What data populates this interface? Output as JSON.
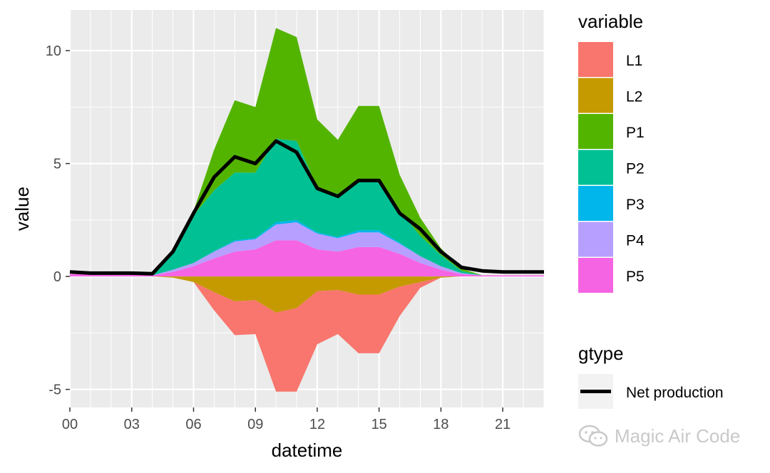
{
  "chart_data": {
    "type": "area",
    "xlabel": "datetime",
    "ylabel": "value",
    "x_hours": [
      0,
      1,
      2,
      3,
      4,
      5,
      6,
      7,
      8,
      9,
      10,
      11,
      12,
      13,
      14,
      15,
      16,
      17,
      18,
      19,
      20,
      21,
      22,
      23
    ],
    "x_tick_labels": [
      "00",
      "03",
      "06",
      "09",
      "12",
      "15",
      "18",
      "21"
    ],
    "x_tick_hours": [
      0,
      3,
      6,
      9,
      12,
      15,
      18,
      21
    ],
    "xlim": [
      0,
      23
    ],
    "ylim": [
      -5.8,
      11.8
    ],
    "y_ticks": [
      -5,
      0,
      5,
      10
    ],
    "y_tick_labels": [
      "-5",
      "0",
      "5",
      "10"
    ],
    "positive_series": [
      {
        "name": "P5",
        "color": "#F564E3",
        "values": [
          0.1,
          0.1,
          0.1,
          0.1,
          0.05,
          0.2,
          0.45,
          0.8,
          1.1,
          1.2,
          1.6,
          1.6,
          1.2,
          1.1,
          1.3,
          1.3,
          1.0,
          0.6,
          0.3,
          0.1,
          0.05,
          0.05,
          0.05,
          0.05
        ]
      },
      {
        "name": "P4",
        "color": "#B79FFF",
        "values": [
          0,
          0,
          0,
          0,
          0,
          0.1,
          0.15,
          0.3,
          0.45,
          0.45,
          0.7,
          0.8,
          0.7,
          0.6,
          0.65,
          0.65,
          0.45,
          0.3,
          0.15,
          0.05,
          0,
          0,
          0,
          0
        ]
      },
      {
        "name": "P3",
        "color": "#00B6EB",
        "values": [
          0,
          0,
          0,
          0,
          0,
          0,
          0,
          0.02,
          0.05,
          0.05,
          0.1,
          0.1,
          0.05,
          0.05,
          0.1,
          0.1,
          0.05,
          0,
          0,
          0,
          0,
          0,
          0,
          0
        ]
      },
      {
        "name": "P2",
        "color": "#00C094",
        "values": [
          0,
          0,
          0,
          0,
          0,
          0.7,
          2.1,
          2.7,
          3.0,
          2.9,
          3.7,
          3.5,
          2.0,
          1.9,
          2.2,
          2.2,
          1.4,
          0.9,
          0.5,
          0.1,
          0,
          0,
          0,
          0
        ]
      },
      {
        "name": "P1",
        "color": "#53B400",
        "values": [
          0,
          0,
          0,
          0,
          0,
          0.1,
          0.2,
          1.8,
          3.2,
          2.9,
          4.9,
          4.6,
          3.0,
          2.4,
          3.3,
          3.3,
          1.6,
          0.8,
          0.3,
          0.1,
          0,
          0,
          0,
          0
        ]
      }
    ],
    "negative_series": [
      {
        "name": "L2",
        "color": "#C49A00",
        "values": [
          0,
          0,
          0,
          0,
          0,
          -0.05,
          -0.25,
          -0.7,
          -1.1,
          -1.05,
          -1.6,
          -1.4,
          -0.65,
          -0.6,
          -0.8,
          -0.8,
          -0.45,
          -0.25,
          -0.05,
          0,
          0,
          0,
          0,
          0
        ]
      },
      {
        "name": "L1",
        "color": "#F8766D",
        "values": [
          0,
          0,
          0,
          0,
          0,
          0,
          0,
          -0.8,
          -1.5,
          -1.5,
          -3.5,
          -3.7,
          -2.35,
          -1.95,
          -2.6,
          -2.6,
          -1.3,
          -0.25,
          0,
          0,
          0,
          0,
          0,
          0
        ]
      }
    ],
    "net_line": {
      "name": "Net production",
      "color": "#000000",
      "values": [
        0.2,
        0.15,
        0.15,
        0.15,
        0.12,
        1.1,
        2.8,
        4.4,
        5.3,
        5.0,
        6.0,
        5.5,
        3.9,
        3.55,
        4.25,
        4.25,
        2.8,
        2.1,
        1.1,
        0.4,
        0.25,
        0.2,
        0.2,
        0.2
      ]
    },
    "legend": {
      "fill_title": "variable",
      "fill_entries": [
        {
          "label": "L1",
          "color": "#F8766D"
        },
        {
          "label": "L2",
          "color": "#C49A00"
        },
        {
          "label": "P1",
          "color": "#53B400"
        },
        {
          "label": "P2",
          "color": "#00C094"
        },
        {
          "label": "P3",
          "color": "#00B6EB"
        },
        {
          "label": "P4",
          "color": "#B79FFF"
        },
        {
          "label": "P5",
          "color": "#F564E3"
        }
      ],
      "line_title": "gtype",
      "line_label": "Net production"
    },
    "panel_background": "#EBEBEB",
    "grid": true
  },
  "watermark": {
    "text": "Magic Air Code"
  }
}
